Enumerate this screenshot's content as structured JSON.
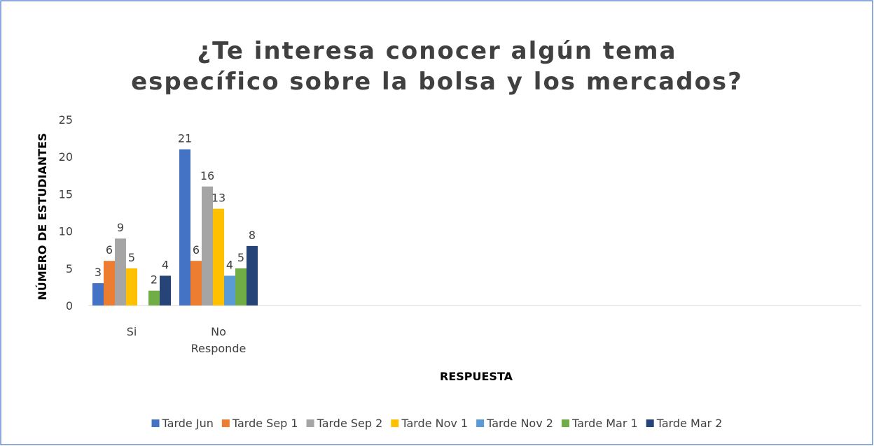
{
  "chart_data": {
    "type": "bar",
    "title": "¿Te interesa conocer algún tema específico sobre la bolsa y los mercados?",
    "x_label": "RESPUESTA",
    "y_label": "NÚMERO DE ESTUDIANTES",
    "categories": [
      "Si",
      "No Responde"
    ],
    "series": [
      {
        "name": "Tarde Jun",
        "color": "#4472c4",
        "values": [
          3,
          21
        ]
      },
      {
        "name": "Tarde Sep 1",
        "color": "#ed7d31",
        "values": [
          6,
          6
        ]
      },
      {
        "name": "Tarde Sep 2",
        "color": "#a5a5a5",
        "values": [
          9,
          16
        ]
      },
      {
        "name": "Tarde Nov 1",
        "color": "#ffc000",
        "values": [
          5,
          13
        ]
      },
      {
        "name": "Tarde Nov 2",
        "color": "#5b9bd5",
        "values": [
          null,
          4
        ]
      },
      {
        "name": "Tarde Mar 1",
        "color": "#70ad47",
        "values": [
          2,
          5
        ]
      },
      {
        "name": "Tarde Mar 2",
        "color": "#264478",
        "values": [
          4,
          8
        ]
      }
    ],
    "ylim": [
      0,
      25
    ],
    "yticks": [
      0,
      5,
      10,
      15,
      20,
      25
    ],
    "grid": false,
    "legend": "bottom"
  }
}
